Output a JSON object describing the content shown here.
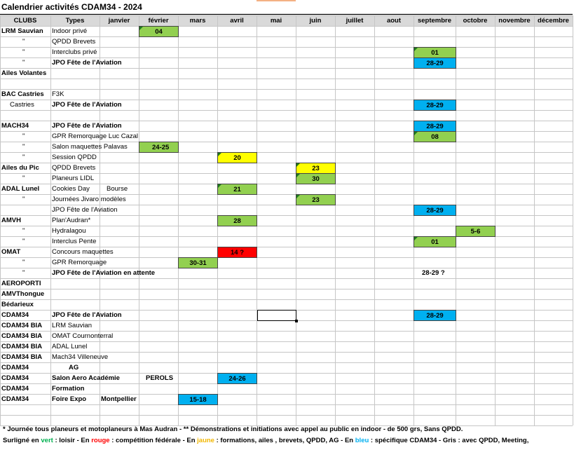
{
  "title": "Calendrier activités CDAM34 - 2024",
  "headers": [
    "CLUBS",
    "Types",
    "janvier",
    "février",
    "mars",
    "avril",
    "mai",
    "juin",
    "juillet",
    "aout",
    "septembre",
    "octobre",
    "novembre",
    "décembre"
  ],
  "colors": {
    "green": "#92d050",
    "blue": "#00b0f0",
    "yellow": "#ffff00",
    "red": "#ff0000",
    "gray_header": "#d9d9d9",
    "grid": "#c6c6c6",
    "comment_marker": "#1d7a1d"
  },
  "rows": [
    {
      "club": "LRM Sauvian",
      "club_bold": true,
      "type": "Indoor privé",
      "type_bold": false,
      "events": [
        {
          "m": 3,
          "text": "04",
          "color": "green",
          "marker": true
        }
      ]
    },
    {
      "club": "\"",
      "type": "QPDD Brevets",
      "events": []
    },
    {
      "club": "\"",
      "type": "Interclubs privé",
      "events": [
        {
          "m": 10,
          "text": "01",
          "color": "green",
          "marker": true
        }
      ]
    },
    {
      "club": "\"",
      "type": "JPO Fête de l'Aviation",
      "type_bold": true,
      "events": [
        {
          "m": 10,
          "text": "28-29",
          "color": "blue"
        }
      ]
    },
    {
      "club": "Ailes Volantes",
      "club_bold": true,
      "type": "",
      "events": []
    },
    {
      "club": "",
      "type": "",
      "events": []
    },
    {
      "club": "BAC Castries",
      "club_bold": true,
      "type": "F3K",
      "events": []
    },
    {
      "club": "Castries",
      "club_indent": true,
      "type": "JPO Fête de l'Aviation",
      "type_bold": true,
      "events": [
        {
          "m": 10,
          "text": "28-29",
          "color": "blue"
        }
      ]
    },
    {
      "club": "",
      "type": "",
      "events": []
    },
    {
      "club": "MACH34",
      "club_bold": true,
      "type": "JPO Fête de l'Aviation",
      "type_bold": true,
      "events": [
        {
          "m": 10,
          "text": "28-29",
          "color": "blue"
        }
      ]
    },
    {
      "club": "\"",
      "type": "GPR Remorquage  Luc Cazal",
      "events": [
        {
          "m": 10,
          "text": "08",
          "color": "green",
          "marker": true
        }
      ]
    },
    {
      "club": "\"",
      "type": "Salon maquettes Palavas",
      "events": [
        {
          "m": 3,
          "text": "24-25",
          "color": "green",
          "spill": true
        }
      ]
    },
    {
      "club": "\"",
      "type": "Session QPDD",
      "events": [
        {
          "m": 5,
          "text": "20",
          "color": "yellow",
          "marker": true
        }
      ]
    },
    {
      "club": "Ailes du Pic",
      "club_bold": true,
      "type": "QPDD Brevets",
      "events": [
        {
          "m": 7,
          "text": "23",
          "color": "yellow",
          "marker": true
        }
      ]
    },
    {
      "club": "\"",
      "type": "Planeurs LIDL",
      "events": [
        {
          "m": 7,
          "text": "30",
          "color": "green",
          "marker": true
        }
      ]
    },
    {
      "club": "ADAL Lunel",
      "club_bold": true,
      "type": "Cookies Day",
      "type_extra": "Bourse",
      "events": [
        {
          "m": 5,
          "text": "21",
          "color": "green",
          "marker": true
        }
      ]
    },
    {
      "club": "\"",
      "type": "Journées Jivaro modèles",
      "events": [
        {
          "m": 7,
          "text": "23",
          "color": "green",
          "marker": true
        }
      ]
    },
    {
      "club": "",
      "type": "JPO Fête de l'Aviation",
      "events": [
        {
          "m": 10,
          "text": "28-29",
          "color": "blue"
        }
      ]
    },
    {
      "club": "AMVH",
      "club_bold": true,
      "type": "Plan'Audran*",
      "events": [
        {
          "m": 5,
          "text": "28",
          "color": "green"
        }
      ]
    },
    {
      "club": "\"",
      "type": "Hydralagou",
      "events": [
        {
          "m": 11,
          "text": "5-6",
          "color": "green"
        }
      ]
    },
    {
      "club": "\"",
      "type": "Interclus Pente",
      "events": [
        {
          "m": 10,
          "text": "01",
          "color": "green",
          "marker": true
        }
      ]
    },
    {
      "club": "OMAT",
      "club_bold": true,
      "type": "Concours maquettes",
      "events": [
        {
          "m": 5,
          "text": "14 ?",
          "color": "red"
        }
      ]
    },
    {
      "club": "\"",
      "type": "GPR Remorquage",
      "events": [
        {
          "m": 4,
          "text": "30-31",
          "color": "green"
        }
      ]
    },
    {
      "club": "\"",
      "type": "JPO Fête de l'Aviation en attente",
      "type_bold": true,
      "events": [
        {
          "m": 10,
          "text": "28-29 ?",
          "color": "none"
        }
      ]
    },
    {
      "club": "AEROPORTI",
      "club_bold": true,
      "type": "",
      "events": []
    },
    {
      "club": "AMVThongue",
      "club_bold": true,
      "type": "",
      "events": []
    },
    {
      "club": "Bédarieux",
      "club_bold": true,
      "type": "",
      "events": []
    },
    {
      "club": "CDAM34",
      "club_bold": true,
      "type": "JPO Fête de l'Aviation",
      "type_bold": true,
      "events": [
        {
          "m": 10,
          "text": "28-29",
          "color": "blue"
        }
      ]
    },
    {
      "club": "CDAM34 BIA",
      "club_bold": true,
      "type": "LRM Sauvian",
      "events": []
    },
    {
      "club": "CDAM34 BIA",
      "club_bold": true,
      "type": "OMAT Cournonterral",
      "events": []
    },
    {
      "club": "CDAM34 BIA",
      "club_bold": true,
      "type": "ADAL Lunel",
      "events": []
    },
    {
      "club": "CDAM34 BIA",
      "club_bold": true,
      "type": "Mach34 Villeneuve",
      "events": []
    },
    {
      "club": "CDAM34",
      "club_bold": true,
      "type": "AG",
      "type_bold": true,
      "type_center": true,
      "events": []
    },
    {
      "club": "CDAM34",
      "club_bold": true,
      "type": "Salon Aero Académie",
      "type_bold": true,
      "type_extra": "PEROLS",
      "events": [
        {
          "m": 5,
          "text": "24-26",
          "color": "blue"
        }
      ]
    },
    {
      "club": "CDAM34",
      "club_bold": true,
      "type": "Formation",
      "type_bold": true,
      "events": []
    },
    {
      "club": "CDAM34",
      "club_bold": true,
      "type": "Foire Expo",
      "type_bold": true,
      "type_extra": "Montpellier",
      "events": [
        {
          "m": 4,
          "text": "15-18",
          "color": "blue"
        }
      ]
    },
    {
      "club": "",
      "type": "",
      "events": []
    },
    {
      "club": "",
      "type": "",
      "events": []
    }
  ],
  "notes": {
    "line1": "* Journée tous planeurs et motoplaneurs à Mas Audran  - ** Démonstrations et initiations avec appel au public en indoor - de 500 grs, Sans QPDD.",
    "line2": [
      {
        "text": "Surligné en ",
        "color": "#000000"
      },
      {
        "text": "vert",
        "color": "#00b050"
      },
      {
        "text": " : loisir - En ",
        "color": "#000000"
      },
      {
        "text": "rouge",
        "color": "#ff0000"
      },
      {
        "text": " : compétition fédérale -  En ",
        "color": "#000000"
      },
      {
        "text": "jaune",
        "color": "#f2b700"
      },
      {
        "text": " : formations, ailes , brevets, QPDD, AG - En ",
        "color": "#000000"
      },
      {
        "text": "bleu",
        "color": "#00b0f0"
      },
      {
        "text": " : spécifique CDAM34 - Gris : avec QPDD, Meeting,",
        "color": "#000000"
      }
    ]
  }
}
